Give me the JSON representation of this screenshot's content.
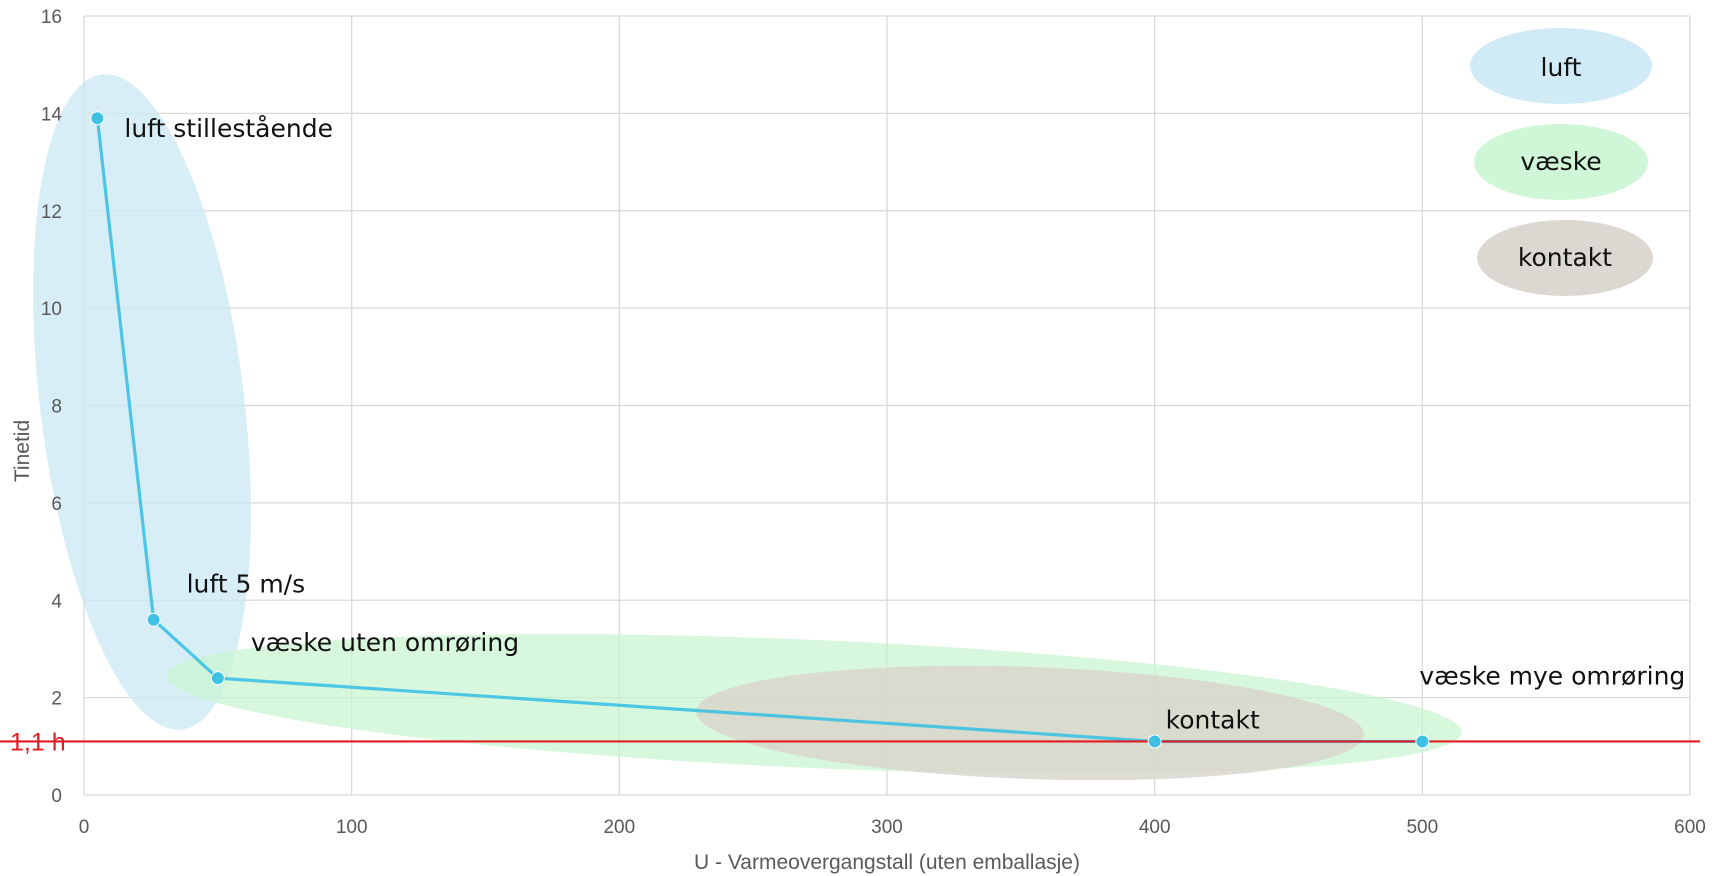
{
  "chart_data": {
    "type": "line",
    "xlabel": "U - Varmeovergangstall (uten emballasje)",
    "ylabel": "Tinetid",
    "xlim": [
      0,
      600
    ],
    "ylim": [
      0,
      16
    ],
    "x_ticks": [
      0,
      100,
      200,
      300,
      400,
      500,
      600
    ],
    "y_ticks": [
      0,
      2,
      4,
      6,
      8,
      10,
      12,
      14,
      16
    ],
    "grid": true,
    "series": [
      {
        "color": "#3ec1e3",
        "points": [
          {
            "x": 5,
            "y": 13.9,
            "label": "luft stillestående"
          },
          {
            "x": 26,
            "y": 3.6,
            "label": "luft 5 m/s"
          },
          {
            "x": 50,
            "y": 2.4,
            "label": "væske uten omrøring"
          },
          {
            "x": 400,
            "y": 1.1,
            "label": "kontakt"
          },
          {
            "x": 500,
            "y": 1.1,
            "label": "væske mye omrøring"
          }
        ]
      }
    ],
    "reference_line": {
      "y": 1.1,
      "label": "1,1 h",
      "color": "#e31b23"
    },
    "regions": [
      {
        "name": "luft",
        "color": "#c9e8f4"
      },
      {
        "name": "væske",
        "color": "#c7f5cf"
      },
      {
        "name": "kontakt",
        "color": "#d8d3cb"
      }
    ],
    "legend_position": "top-right"
  }
}
